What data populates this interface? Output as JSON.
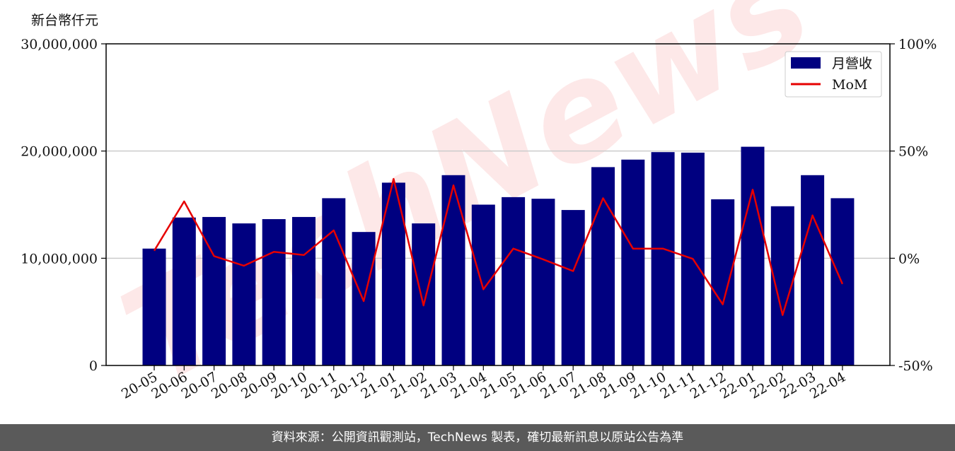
{
  "chart_data": {
    "type": "bar",
    "unit_label": "新台幣仟元",
    "categories": [
      "20-05",
      "20-06",
      "20-07",
      "20-08",
      "20-09",
      "20-10",
      "20-11",
      "20-12",
      "21-01",
      "21-02",
      "21-03",
      "21-04",
      "21-05",
      "21-06",
      "21-07",
      "21-08",
      "21-09",
      "21-10",
      "21-11",
      "21-12",
      "22-01",
      "22-02",
      "22-03",
      "22-04"
    ],
    "series": [
      {
        "name": "月營收",
        "axis": "left",
        "type": "bar",
        "color": "#000080",
        "values": [
          10900000,
          13800000,
          13850000,
          13250000,
          13650000,
          13850000,
          15600000,
          12450000,
          17050000,
          13250000,
          17750000,
          15000000,
          15700000,
          15550000,
          14500000,
          18500000,
          19200000,
          19900000,
          19850000,
          15500000,
          20400000,
          14850000,
          17750000,
          15600000
        ]
      },
      {
        "name": "MoM",
        "axis": "right",
        "type": "line",
        "color": "#e60000",
        "values": [
          3.5,
          26.5,
          1.0,
          -3.5,
          3.0,
          1.5,
          13.0,
          -20.0,
          37.0,
          -22.0,
          34.0,
          -14.5,
          4.5,
          -0.5,
          -6.0,
          28.0,
          4.5,
          4.5,
          -0.3,
          -21.5,
          32.0,
          -26.5,
          20.0,
          -12.0
        ]
      }
    ],
    "y_left": {
      "lim": [
        0,
        30000000
      ],
      "ticks": [
        0,
        10000000,
        20000000,
        30000000
      ],
      "tick_labels": [
        "0",
        "10,000,000",
        "20,000,000",
        "30,000,000"
      ]
    },
    "y_right": {
      "lim": [
        -50,
        100
      ],
      "ticks": [
        -50,
        0,
        50,
        100
      ],
      "tick_labels": [
        "-50%",
        "0%",
        "50%",
        "100%"
      ]
    },
    "grid": "horizontal",
    "legend_position": "top-right"
  },
  "watermark": "TechNews",
  "footer": "資料來源：公開資訊觀測站，TechNews 製表，確切最新訊息以原站公告為準"
}
